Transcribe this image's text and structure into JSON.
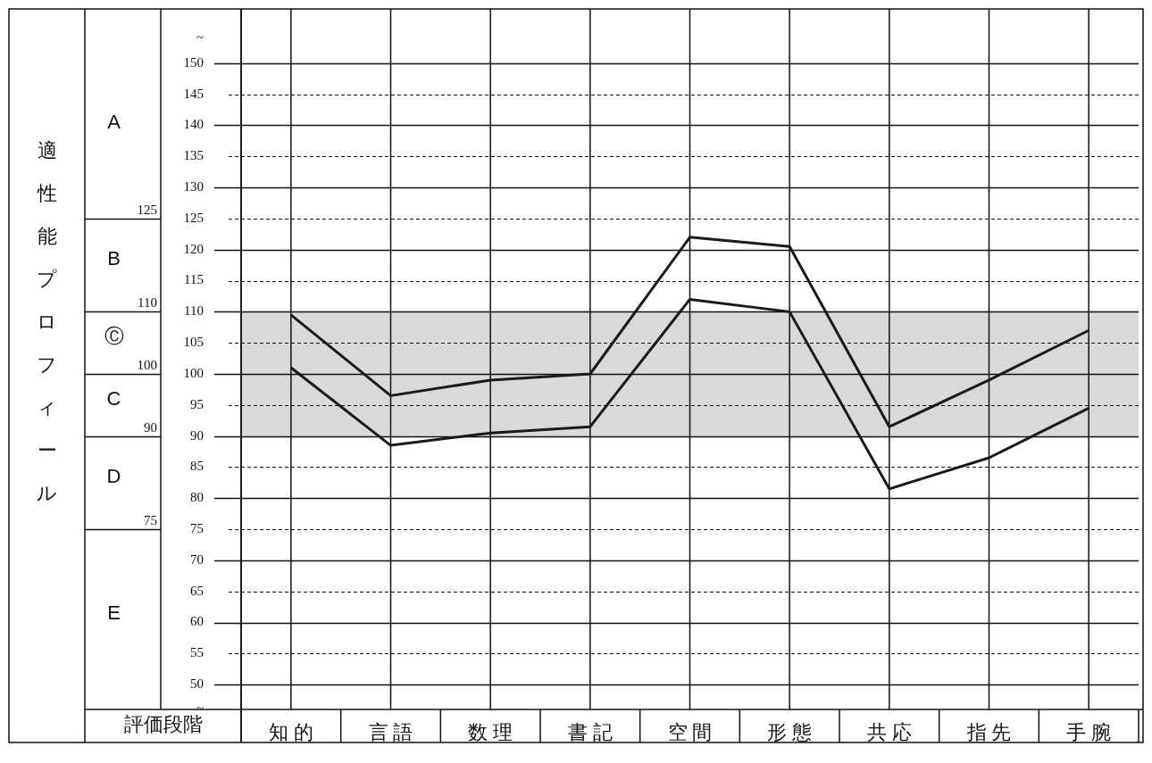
{
  "chart_data": {
    "type": "line",
    "ylabel": "適性能プロフィール",
    "xlabel": "評価段階",
    "categories": [
      "知 的",
      "言 語",
      "数 理",
      "書 記",
      "空 間",
      "形 態",
      "共 応",
      "指 先",
      "手 腕"
    ],
    "series": [
      {
        "color": "#1a1a1a",
        "values": [
          109.5,
          96.5,
          99,
          100,
          122,
          120.5,
          91.5,
          99,
          107
        ]
      },
      {
        "color": "#1a1a1a",
        "values": [
          101,
          88.5,
          90.5,
          91.5,
          112,
          110,
          81.5,
          86.5,
          94.5
        ]
      }
    ],
    "ylim": [
      46,
      154
    ],
    "yticks": [
      {
        "value": 154,
        "label": "~"
      },
      150,
      145,
      140,
      135,
      130,
      125,
      120,
      115,
      110,
      105,
      100,
      95,
      90,
      85,
      80,
      75,
      70,
      65,
      60,
      55,
      50,
      {
        "value": 46,
        "label": "~"
      }
    ],
    "ref_lines": [
      {
        "axis": "y",
        "value": 125,
        "label": "125"
      },
      {
        "axis": "y",
        "value": 110,
        "label": "110"
      },
      {
        "axis": "y",
        "value": 100,
        "label": "100"
      },
      {
        "axis": "y",
        "value": 90,
        "label": "90"
      },
      {
        "axis": "y",
        "value": 75,
        "label": "75"
      }
    ],
    "annotations": [
      "A",
      "B",
      "Ⓒ",
      "C",
      "D",
      "E"
    ],
    "bands": [
      {
        "axis": "y",
        "from": 90,
        "to": 110,
        "color": "#d9d9d9"
      }
    ],
    "grid": true,
    "legend": false,
    "marker": "none",
    "line_style": "solid"
  }
}
